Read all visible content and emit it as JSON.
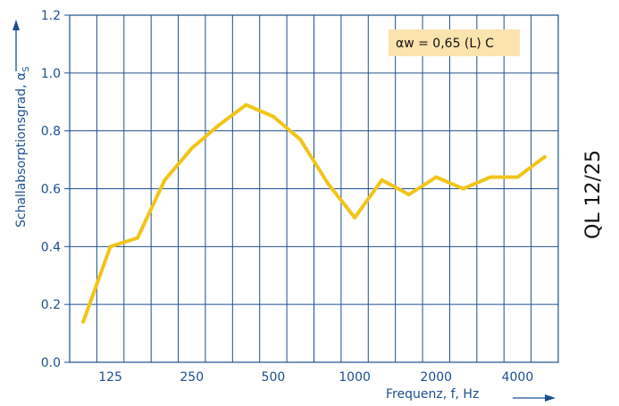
{
  "side_label": "QL 12/25",
  "chart_data": {
    "type": "line",
    "title": "",
    "xlabel": "Frequenz, f, Hz",
    "ylabel": "Schallabsorptionsgrad, αs",
    "ylabel_main": "Schallabsorptionsgrad, α",
    "ylabel_sub": "S",
    "x_scale": "log (third-octave bands)",
    "x": [
      100,
      125,
      160,
      200,
      250,
      315,
      400,
      500,
      630,
      800,
      1000,
      1250,
      1600,
      2000,
      2500,
      3150,
      4000,
      5000
    ],
    "x_tick_labels": [
      "125",
      "250",
      "500",
      "1000",
      "2000",
      "4000"
    ],
    "y_tick_labels": [
      "0.0",
      "0.2",
      "0.4",
      "0.6",
      "0.8",
      "1.0",
      "1.2"
    ],
    "ylim": [
      0,
      1.2
    ],
    "grid": true,
    "series": [
      {
        "values": [
          0.14,
          0.4,
          0.43,
          0.63,
          0.74,
          0.82,
          0.89,
          0.85,
          0.77,
          0.62,
          0.5,
          0.63,
          0.58,
          0.64,
          0.6,
          0.64,
          0.64,
          0.71
        ],
        "color": "#f2c418"
      }
    ],
    "annotation": "αw = 0,65 (L) C",
    "colors": {
      "axis": "#1b4f8f",
      "grid": "#1b4f8f",
      "annotation_bg": "#fbe3ad"
    }
  }
}
